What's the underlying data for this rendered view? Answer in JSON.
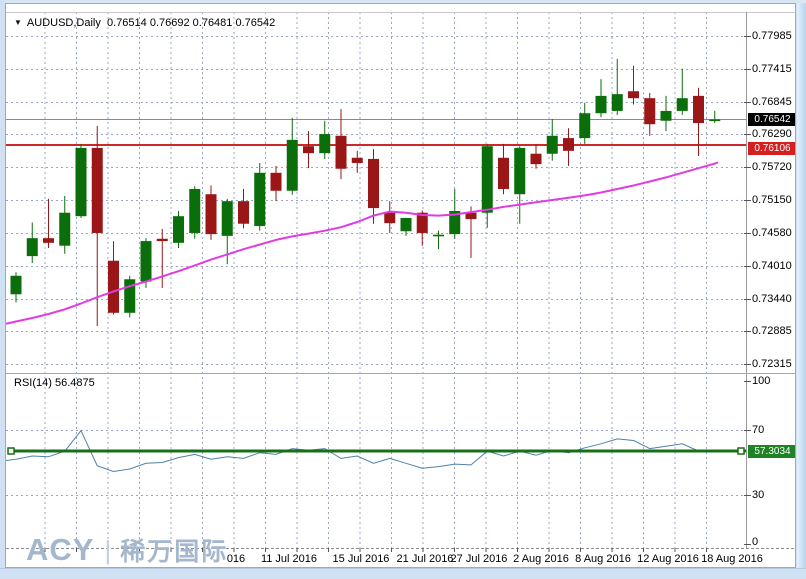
{
  "window_title": {
    "symbol_label": "AUDUSD,Daily",
    "ohlc_text": "0.76514 0.76692 0.76481 0.76542",
    "dropdown_glyph": "▼"
  },
  "indicator": {
    "label": "RSI(14) 56.4875"
  },
  "logo": {
    "acy": "ACY",
    "separator": "|",
    "cn": "稀万国际"
  },
  "colors": {
    "bull_candle": "#0a6e0a",
    "bear_candle": "#9b1616",
    "ma_line": "#e23be2",
    "rsi_line": "#4f81ab",
    "support_line": "#cc2a2a",
    "current_price_line": "#8286b4",
    "rsi_hline": "#176f17",
    "grid": "#9aa4c6",
    "current_price_box_bg": "#000000",
    "support_box_bg": "#d42020",
    "rsi_box_bg": "#1d8323",
    "frame_blue": "#cfe1f3",
    "logo_text": "#a4b7cd"
  },
  "chart_data": {
    "type": "candlestick",
    "symbol": "AUDUSD",
    "timeframe": "Daily",
    "current_ohlc": {
      "open": "0.76514",
      "high": "0.76692",
      "low": "0.76481",
      "close": "0.76542"
    },
    "price_axis": {
      "ticks": [
        "0.77985",
        "0.77415",
        "0.76845",
        "0.76290",
        "0.75720",
        "0.75150",
        "0.74580",
        "0.74010",
        "0.73440",
        "0.72885",
        "0.72315"
      ],
      "range_top": 0.77985,
      "range_bottom": 0.72315
    },
    "rsi_axis": {
      "ticks": [
        100,
        70,
        30,
        0
      ],
      "dashed_levels": [
        70,
        30
      ],
      "range_top": 100,
      "range_bottom": 0
    },
    "x_axis": {
      "labels": [
        "016",
        "11 Jul 2016",
        "15 Jul 2016",
        "21 Jul 2016",
        "27 Jul 2016",
        "2 Aug 2016",
        "8 Aug 2016",
        "12 Aug 2016",
        "18 Aug 2016"
      ]
    },
    "hlines": {
      "support_price": "0.76106",
      "current_price": "0.76542",
      "rsi_level": "57.3034"
    },
    "candles": [
      [
        0.7352,
        0.739,
        0.7338,
        0.7384
      ],
      [
        0.7418,
        0.7476,
        0.7406,
        0.7449
      ],
      [
        0.7449,
        0.7517,
        0.7432,
        0.7441
      ],
      [
        0.7436,
        0.7522,
        0.7422,
        0.7493
      ],
      [
        0.7487,
        0.7612,
        0.7484,
        0.7605
      ],
      [
        0.7605,
        0.7643,
        0.7297,
        0.7458
      ],
      [
        0.741,
        0.7444,
        0.7317,
        0.732
      ],
      [
        0.732,
        0.7384,
        0.7312,
        0.7378
      ],
      [
        0.7374,
        0.7449,
        0.7363,
        0.7444
      ],
      [
        0.7448,
        0.7465,
        0.7363,
        0.7444
      ],
      [
        0.7441,
        0.7496,
        0.7432,
        0.7487
      ],
      [
        0.7458,
        0.7539,
        0.7448,
        0.7534
      ],
      [
        0.7525,
        0.754,
        0.7446,
        0.7456
      ],
      [
        0.7453,
        0.7517,
        0.7404,
        0.7513
      ],
      [
        0.7513,
        0.7534,
        0.7466,
        0.7474
      ],
      [
        0.747,
        0.7579,
        0.7462,
        0.7562
      ],
      [
        0.7562,
        0.7574,
        0.7513,
        0.7531
      ],
      [
        0.7531,
        0.7657,
        0.7524,
        0.7619
      ],
      [
        0.7608,
        0.7634,
        0.757,
        0.7596
      ],
      [
        0.7596,
        0.7652,
        0.7586,
        0.7629
      ],
      [
        0.7626,
        0.7672,
        0.7551,
        0.7569
      ],
      [
        0.7588,
        0.76,
        0.7562,
        0.7579
      ],
      [
        0.7586,
        0.7603,
        0.7474,
        0.7501
      ],
      [
        0.7493,
        0.7513,
        0.7458,
        0.7475
      ],
      [
        0.7461,
        0.7484,
        0.7453,
        0.7484
      ],
      [
        0.7493,
        0.7497,
        0.7436,
        0.7458
      ],
      [
        0.7453,
        0.7462,
        0.743,
        0.7455
      ],
      [
        0.7456,
        0.7534,
        0.7448,
        0.7496
      ],
      [
        0.7493,
        0.7504,
        0.7415,
        0.7482
      ],
      [
        0.7493,
        0.7612,
        0.7467,
        0.7608
      ],
      [
        0.7588,
        0.7612,
        0.7525,
        0.7534
      ],
      [
        0.7525,
        0.7608,
        0.7474,
        0.7605
      ],
      [
        0.7595,
        0.7612,
        0.7569,
        0.7577
      ],
      [
        0.7595,
        0.7655,
        0.7583,
        0.7626
      ],
      [
        0.7622,
        0.7639,
        0.7574,
        0.76
      ],
      [
        0.7622,
        0.7683,
        0.7612,
        0.7665
      ],
      [
        0.7665,
        0.7724,
        0.7658,
        0.7695
      ],
      [
        0.7669,
        0.7759,
        0.7662,
        0.7698
      ],
      [
        0.7703,
        0.7747,
        0.768,
        0.7691
      ],
      [
        0.7691,
        0.77,
        0.7626,
        0.7646
      ],
      [
        0.7652,
        0.7695,
        0.7634,
        0.7669
      ],
      [
        0.7669,
        0.7742,
        0.7662,
        0.7691
      ],
      [
        0.7695,
        0.7709,
        0.7591,
        0.7648
      ],
      [
        0.76514,
        0.76692,
        0.76481,
        0.76542
      ]
    ],
    "ma_line": [
      0.7305,
      0.7311,
      0.7318,
      0.7326,
      0.7336,
      0.7347,
      0.7357,
      0.7366,
      0.7374,
      0.7383,
      0.7392,
      0.7402,
      0.7412,
      0.7421,
      0.743,
      0.7438,
      0.7446,
      0.7452,
      0.7457,
      0.7462,
      0.7468,
      0.7477,
      0.7488,
      0.7495,
      0.7493,
      0.7489,
      0.7488,
      0.749,
      0.7494,
      0.7498,
      0.7503,
      0.7507,
      0.7511,
      0.7515,
      0.7519,
      0.7523,
      0.7528,
      0.7534,
      0.754,
      0.7547,
      0.7554,
      0.7562,
      0.757,
      0.7578
    ],
    "rsi_line": [
      52,
      54,
      53.5,
      57,
      69.5,
      48,
      44.5,
      46,
      49.5,
      50,
      53,
      55,
      52,
      53.5,
      52.5,
      56,
      55,
      58.5,
      57.5,
      58.5,
      52.5,
      54,
      49.5,
      52.5,
      49.5,
      46.5,
      47.5,
      49,
      48.5,
      57,
      54,
      57,
      54.5,
      57.5,
      56,
      59,
      61.5,
      64.5,
      63.5,
      58.5,
      60,
      61.5,
      57,
      56.4875
    ]
  }
}
